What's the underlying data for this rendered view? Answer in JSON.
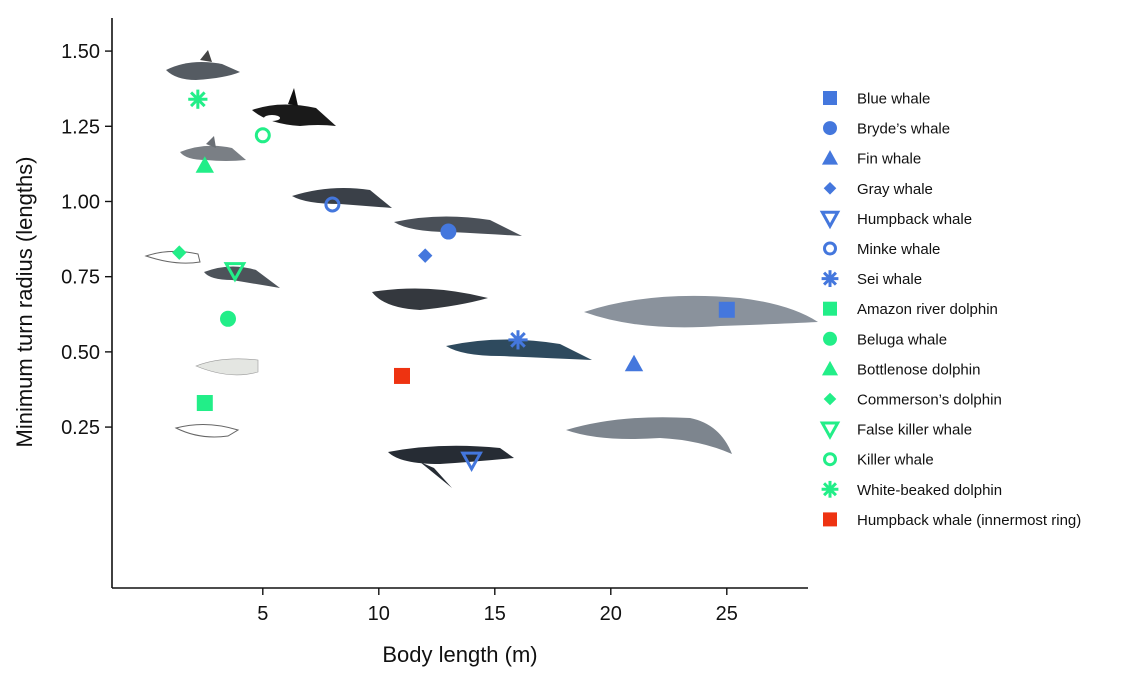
{
  "chart_data": {
    "type": "scatter",
    "title": "",
    "xlabel": "Body length (m)",
    "ylabel": "Minimum turn radius (lengths)",
    "xlim": [
      -1.5,
      28.5
    ],
    "ylim": [
      -0.285,
      1.61
    ],
    "xticks": [
      5,
      10,
      15,
      20,
      25
    ],
    "yticks": [
      0.25,
      0.5,
      0.75,
      1.0,
      1.25,
      1.5
    ],
    "ytick_labels": [
      "0.25",
      "0.50",
      "0.75",
      "1.00",
      "1.25",
      "1.50"
    ],
    "grid": false,
    "legend_position": "right",
    "colors": {
      "blue": "#4477dd",
      "green": "#22ee88",
      "red": "#ee3311"
    },
    "series": [
      {
        "name": "Blue whale",
        "marker": "square",
        "filled": true,
        "color": "#4477dd",
        "x": 25.0,
        "y": 0.64
      },
      {
        "name": "Bryde’s whale",
        "marker": "circle",
        "filled": true,
        "color": "#4477dd",
        "x": 13.0,
        "y": 0.9
      },
      {
        "name": "Fin whale",
        "marker": "triangle-up",
        "filled": true,
        "color": "#4477dd",
        "x": 21.0,
        "y": 0.46
      },
      {
        "name": "Gray whale",
        "marker": "diamond",
        "filled": true,
        "color": "#4477dd",
        "x": 12.0,
        "y": 0.82
      },
      {
        "name": "Humpback whale",
        "marker": "triangle-down",
        "filled": false,
        "color": "#4477dd",
        "x": 14.0,
        "y": 0.14
      },
      {
        "name": "Minke whale",
        "marker": "circle",
        "filled": false,
        "color": "#4477dd",
        "x": 8.0,
        "y": 0.99
      },
      {
        "name": "Sei whale",
        "marker": "asterisk",
        "filled": false,
        "color": "#4477dd",
        "x": 16.0,
        "y": 0.54
      },
      {
        "name": "Amazon river dolphin",
        "marker": "square",
        "filled": true,
        "color": "#22ee88",
        "x": 2.5,
        "y": 0.33
      },
      {
        "name": "Beluga whale",
        "marker": "circle",
        "filled": true,
        "color": "#22ee88",
        "x": 3.5,
        "y": 0.61
      },
      {
        "name": "Bottlenose dolphin",
        "marker": "triangle-up",
        "filled": true,
        "color": "#22ee88",
        "x": 2.5,
        "y": 1.12
      },
      {
        "name": "Commerson’s dolphin",
        "marker": "diamond",
        "filled": true,
        "color": "#22ee88",
        "x": 1.4,
        "y": 0.83
      },
      {
        "name": "False killer whale",
        "marker": "triangle-down",
        "filled": false,
        "color": "#22ee88",
        "x": 3.8,
        "y": 0.77
      },
      {
        "name": "Killer whale",
        "marker": "circle",
        "filled": false,
        "color": "#22ee88",
        "x": 5.0,
        "y": 1.22
      },
      {
        "name": "White-beaked dolphin",
        "marker": "asterisk",
        "filled": false,
        "color": "#22ee88",
        "x": 2.2,
        "y": 1.34
      },
      {
        "name": "Humpback whale (innermost ring)",
        "marker": "square",
        "filled": true,
        "color": "#ee3311",
        "x": 11.0,
        "y": 0.42
      }
    ]
  }
}
